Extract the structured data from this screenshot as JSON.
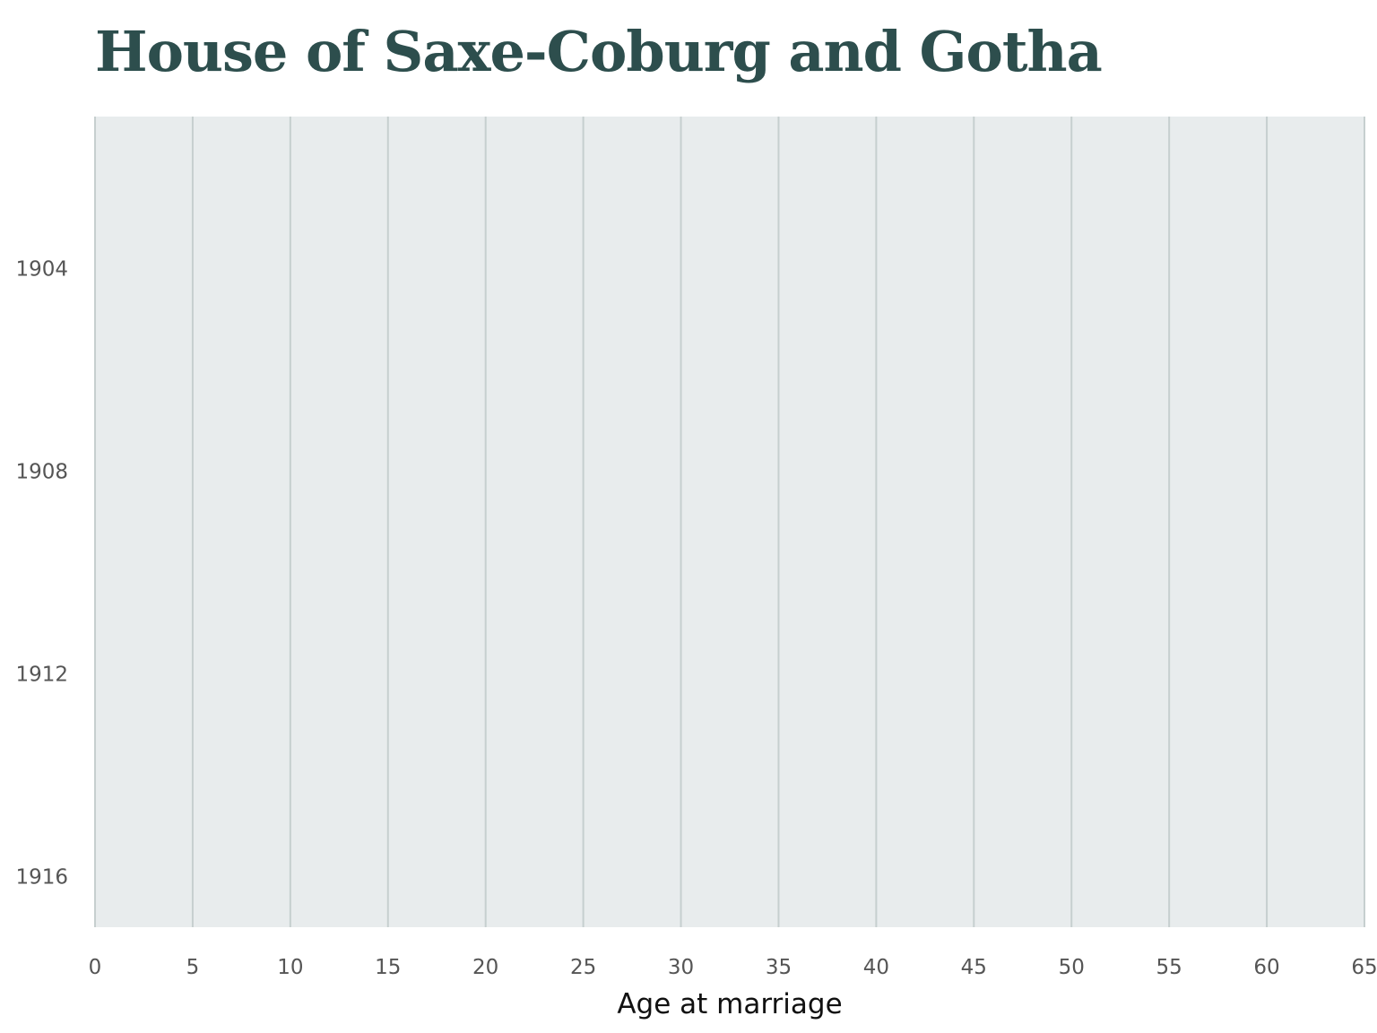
{
  "chart_data": {
    "type": "scatter",
    "title": "House of Saxe-Coburg and Gotha",
    "xlabel": "Age at marriage",
    "ylabel": "",
    "xlim": [
      0,
      65
    ],
    "ylim": [
      1901,
      1917
    ],
    "y_reversed": true,
    "x_ticks": [
      0,
      5,
      10,
      15,
      20,
      25,
      30,
      35,
      40,
      45,
      50,
      55,
      60,
      65
    ],
    "y_ticks": [
      1904,
      1908,
      1912,
      1916
    ],
    "grid": "vertical",
    "points": [],
    "colors": {
      "title": "#2d4e4d",
      "plot_background": "#e8eced",
      "gridline": "#c6cfcf",
      "tick_label": "#555555",
      "axis_label": "#111111"
    }
  }
}
